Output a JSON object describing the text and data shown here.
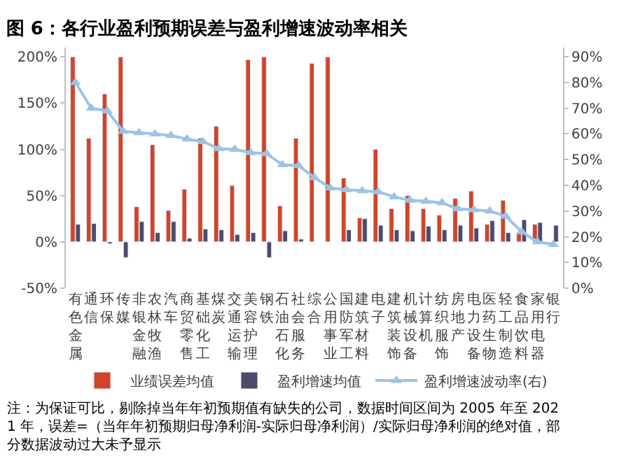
{
  "chart_data": {
    "type": "bar",
    "title": "图 6：各行业盈利预期误差与盈利增速波动率相关",
    "categories": [
      "有色金属",
      "通信",
      "环保",
      "传媒",
      "非银金融",
      "农林牧渔",
      "汽车",
      "商贸零售",
      "基础化工",
      "煤炭",
      "交通运输",
      "美容护理",
      "钢铁",
      "石油石化",
      "社会服务",
      "综合",
      "公用事业",
      "国防军工",
      "建筑材料",
      "电子",
      "建筑装饰",
      "机械设备",
      "计算机",
      "纺织服饰",
      "房地产",
      "电力设备",
      "医药生物",
      "轻工制造",
      "食品饮料",
      "家用电器",
      "银行"
    ],
    "series": [
      {
        "name": "业绩误差均值",
        "color": "#d0442a",
        "values": [
          200,
          112,
          160,
          200,
          38,
          105,
          34,
          57,
          112,
          125,
          61,
          197,
          200,
          39,
          112,
          193,
          200,
          69,
          26,
          100,
          36,
          50,
          36,
          29,
          47,
          55,
          19,
          45,
          9,
          19,
          null
        ]
      },
      {
        "name": "盈利增速均值",
        "color": "#4b4b6b",
        "values": [
          19,
          20,
          -2,
          -17,
          22,
          10,
          22,
          4,
          14,
          13,
          8,
          10,
          -17,
          12,
          3,
          null,
          null,
          13,
          25,
          18,
          13,
          12,
          17,
          13,
          18,
          15,
          23,
          10,
          24,
          21,
          18
        ]
      },
      {
        "name": "盈利增速波动率(右)",
        "type": "line",
        "axis": "y2",
        "color": "#9dc3e6",
        "marker": "triangle",
        "values": [
          80,
          70,
          69,
          61,
          60.5,
          60,
          59.4,
          58,
          57,
          54.3,
          54,
          52.7,
          52.3,
          48,
          47.7,
          43,
          39,
          38.3,
          37.9,
          37.5,
          35.5,
          34.2,
          33.8,
          33.2,
          30.9,
          30.5,
          30,
          28,
          22,
          18,
          17
        ]
      }
    ],
    "ylim": [
      -50,
      210
    ],
    "yticks": [
      {
        "value": -50,
        "label": "-50%"
      },
      {
        "value": 0,
        "label": "0%"
      },
      {
        "value": 50,
        "label": "50%"
      },
      {
        "value": 100,
        "label": "100%"
      },
      {
        "value": 150,
        "label": "150%"
      },
      {
        "value": 200,
        "label": "200%"
      }
    ],
    "y2lim": [
      0,
      93.6
    ],
    "y2ticks": [
      {
        "value": 0,
        "label": "0%"
      },
      {
        "value": 10,
        "label": "10%"
      },
      {
        "value": 20,
        "label": "20%"
      },
      {
        "value": 30,
        "label": "30%"
      },
      {
        "value": 40,
        "label": "40%"
      },
      {
        "value": 50,
        "label": "50%"
      },
      {
        "value": 60,
        "label": "60%"
      },
      {
        "value": 70,
        "label": "70%"
      },
      {
        "value": 80,
        "label": "80%"
      },
      {
        "value": 90,
        "label": "90%"
      }
    ],
    "legend": "bottom",
    "annotations": [
      "注：为保证可比，剔除掉当年年初预期值有缺失的公司，数据时间区间为 2005 年至 2021 年，误差=（当年年初预期归母净利润-实际归母净利润）/实际归母净利润的绝对值，部分数据波动过大未予显示"
    ]
  }
}
